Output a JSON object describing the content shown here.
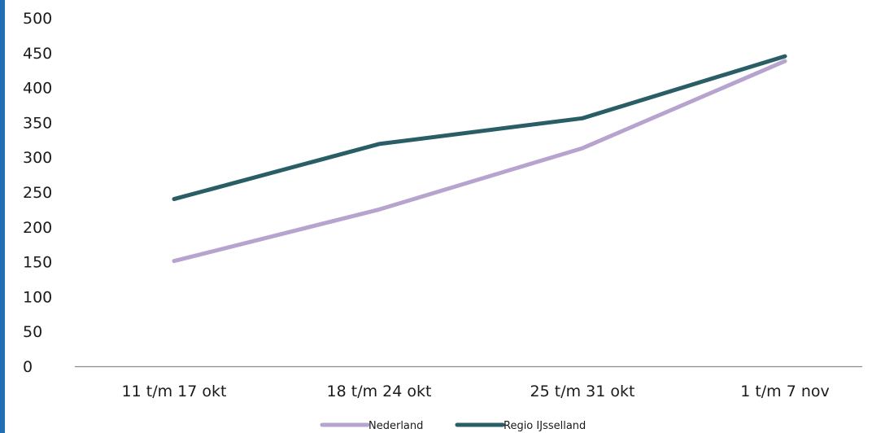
{
  "colors": {
    "left_bar": "#1f6fb5",
    "nederland": "#b6a4cf",
    "regio_ijsselland": "#2a5e66",
    "axis": "#8c8c8c"
  },
  "chart_data": {
    "type": "line",
    "categories": [
      "11 t/m 17 okt",
      "18 t/m 24 okt",
      "25 t/m 31 okt",
      "1 t/m 7 nov"
    ],
    "series": [
      {
        "name": "Nederland",
        "values": [
          151,
          225,
          313,
          438
        ]
      },
      {
        "name": "Regio IJsselland",
        "values": [
          240,
          319,
          356,
          445
        ]
      }
    ],
    "ylim": [
      0,
      500
    ],
    "yticks": [
      0,
      50,
      100,
      150,
      200,
      250,
      300,
      350,
      400,
      450,
      500
    ],
    "grid": false,
    "legend": "bottom",
    "title": "",
    "xlabel": "",
    "ylabel": ""
  }
}
